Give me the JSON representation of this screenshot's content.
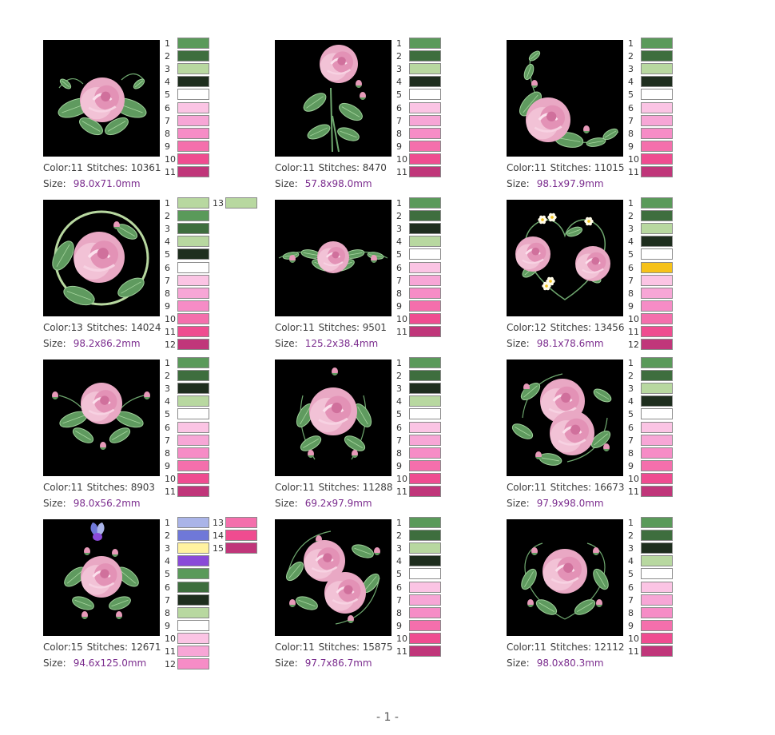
{
  "page_number": "- 1 -",
  "labels": {
    "color": "Color:",
    "stitches": "Stitches:",
    "size": "Size:"
  },
  "designs": [
    {
      "id": "d1",
      "color": "11",
      "stitches": "10361",
      "size": "98.0x71.0mm",
      "art": "rose-with-scroll-leaves",
      "colors": [
        "#5a9a5a",
        "#3e6e3e",
        "#b8d8a0",
        "#1e2e1e",
        "#ffffff",
        "#fbc4e4",
        "#f7a6d6",
        "#f68cc6",
        "#f46fac",
        "#ef4c90",
        "#c0367a"
      ]
    },
    {
      "id": "d2",
      "color": "11",
      "stitches": "8470",
      "size": "57.8x98.0mm",
      "art": "long-stem-rose",
      "colors": [
        "#5a9a5a",
        "#3e6e3e",
        "#b8d8a0",
        "#1e2e1e",
        "#ffffff",
        "#fbc4e4",
        "#f7a6d6",
        "#f68cc6",
        "#f46fac",
        "#ef4c90",
        "#c0367a"
      ]
    },
    {
      "id": "d3",
      "color": "11",
      "stitches": "11015",
      "size": "98.1x97.9mm",
      "art": "corner-rose-spray",
      "colors": [
        "#5a9a5a",
        "#3e6e3e",
        "#b8d8a0",
        "#1e2e1e",
        "#ffffff",
        "#fbc4e4",
        "#f7a6d6",
        "#f68cc6",
        "#f46fac",
        "#ef4c90",
        "#c0367a"
      ]
    },
    {
      "id": "d4",
      "color": "13",
      "stitches": "14024",
      "size": "98.2x86.2mm",
      "art": "rose-in-ring",
      "colors": [
        "#b8d8a0",
        "#5a9a5a",
        "#3e6e3e",
        "#b8d8a0",
        "#1e2e1e",
        "#ffffff",
        "#fbc4e4",
        "#f7a6d6",
        "#f68cc6",
        "#f46fac",
        "#ef4c90",
        "#c0367a",
        "#b8d8a0"
      ]
    },
    {
      "id": "d5",
      "color": "11",
      "stitches": "9501",
      "size": "125.2x38.4mm",
      "art": "rose-border",
      "colors": [
        "#5a9a5a",
        "#3e6e3e",
        "#1e2e1e",
        "#b8d8a0",
        "#ffffff",
        "#fbc4e4",
        "#f7a6d6",
        "#f68cc6",
        "#f46fac",
        "#ef4c90",
        "#c0367a"
      ]
    },
    {
      "id": "d6",
      "color": "12",
      "stitches": "13456",
      "size": "98.1x78.6mm",
      "art": "rose-heart-wreath",
      "colors": [
        "#5a9a5a",
        "#3e6e3e",
        "#b8d8a0",
        "#1e2e1e",
        "#ffffff",
        "#f6c21a",
        "#fbc4e4",
        "#f7a6d6",
        "#f68cc6",
        "#f46fac",
        "#ef4c90",
        "#c0367a"
      ]
    },
    {
      "id": "d7",
      "color": "11",
      "stitches": "8903",
      "size": "98.0x56.2mm",
      "art": "rose-with-buds",
      "colors": [
        "#5a9a5a",
        "#3e6e3e",
        "#1e2e1e",
        "#b8d8a0",
        "#ffffff",
        "#fbc4e4",
        "#f7a6d6",
        "#f68cc6",
        "#f46fac",
        "#ef4c90",
        "#c0367a"
      ]
    },
    {
      "id": "d8",
      "color": "11",
      "stitches": "11288",
      "size": "69.2x97.9mm",
      "art": "rose-oval-bouquet",
      "colors": [
        "#5a9a5a",
        "#3e6e3e",
        "#1e2e1e",
        "#b8d8a0",
        "#ffffff",
        "#fbc4e4",
        "#f7a6d6",
        "#f68cc6",
        "#f46fac",
        "#ef4c90",
        "#c0367a"
      ]
    },
    {
      "id": "d9",
      "color": "11",
      "stitches": "16673",
      "size": "97.9x98.0mm",
      "art": "double-rose-wreath",
      "colors": [
        "#5a9a5a",
        "#3e6e3e",
        "#b8d8a0",
        "#1e2e1e",
        "#ffffff",
        "#fbc4e4",
        "#f7a6d6",
        "#f68cc6",
        "#f46fac",
        "#ef4c90",
        "#c0367a"
      ]
    },
    {
      "id": "d10",
      "color": "15",
      "stitches": "12671",
      "size": "94.6x125.0mm",
      "art": "rose-with-butterfly",
      "colors": [
        "#aab4e8",
        "#6f78d8",
        "#fff2a0",
        "#8a4ad8",
        "#5a9a5a",
        "#3e6e3e",
        "#1e2e1e",
        "#b8d8a0",
        "#ffffff",
        "#fbc4e4",
        "#f7a6d6",
        "#f68cc6",
        "#f46fac",
        "#ef4c90",
        "#c0367a"
      ]
    },
    {
      "id": "d11",
      "color": "11",
      "stitches": "15875",
      "size": "97.7x86.7mm",
      "art": "double-rose-cluster",
      "colors": [
        "#5a9a5a",
        "#3e6e3e",
        "#b8d8a0",
        "#1e2e1e",
        "#ffffff",
        "#fbc4e4",
        "#f7a6d6",
        "#f68cc6",
        "#f46fac",
        "#ef4c90",
        "#c0367a"
      ]
    },
    {
      "id": "d12",
      "color": "11",
      "stitches": "12112",
      "size": "98.0x80.3mm",
      "art": "rose-heart-frame",
      "colors": [
        "#5a9a5a",
        "#3e6e3e",
        "#1e2e1e",
        "#b8d8a0",
        "#ffffff",
        "#fbc4e4",
        "#f7a6d6",
        "#f68cc6",
        "#f46fac",
        "#ef4c90",
        "#c0367a"
      ]
    }
  ]
}
